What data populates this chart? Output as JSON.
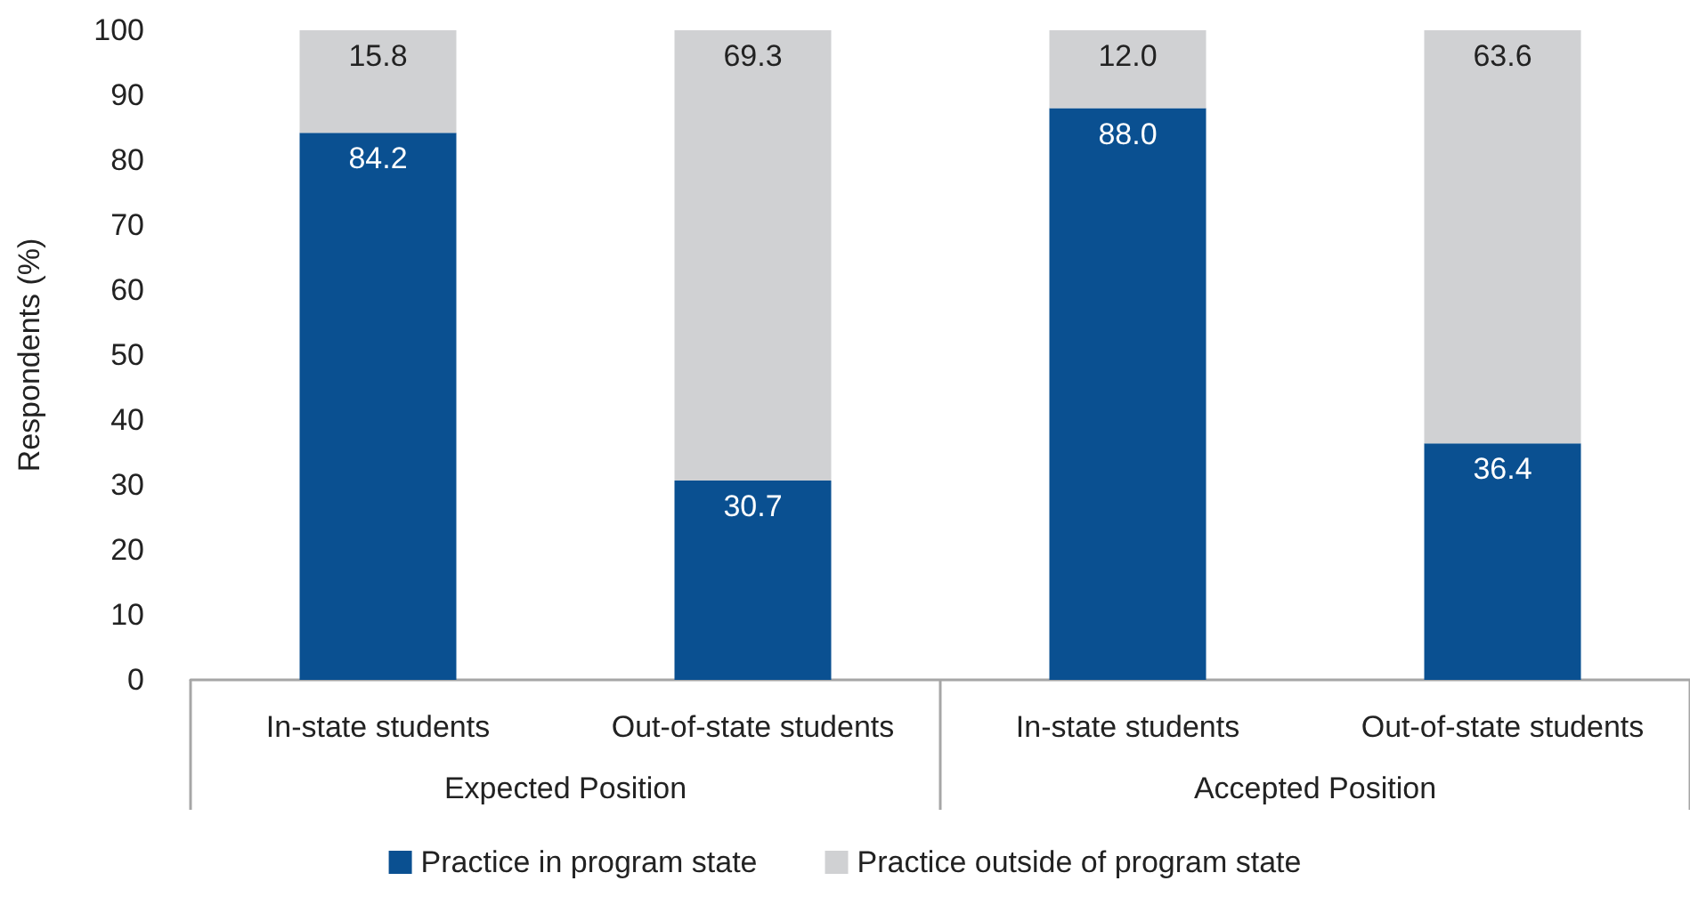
{
  "chart_data": {
    "type": "bar",
    "stacked": true,
    "ylabel": "Respondents (%)",
    "categories": [
      "In-state students",
      "Out-of-state students",
      "In-state students",
      "Out-of-state students"
    ],
    "series": [
      {
        "name": "Practice in program state",
        "color": "#0a5091",
        "values": [
          84.2,
          30.7,
          88.0,
          36.4
        ],
        "value_labels": [
          "84.2",
          "30.7",
          "88.0",
          "36.4"
        ]
      },
      {
        "name": "Practice outside of program state",
        "color": "#d0d1d3",
        "values": [
          15.8,
          69.3,
          12.0,
          63.6
        ],
        "value_labels": [
          "15.8",
          "69.3",
          "12.0",
          "63.6"
        ]
      }
    ],
    "annotations": [
      "Expected Position",
      "Accepted Position"
    ],
    "ylim": [
      0,
      100
    ],
    "yticks": [
      0,
      10,
      20,
      30,
      40,
      50,
      60,
      70,
      80,
      90,
      100
    ],
    "grid": false,
    "legend": "bottom"
  }
}
